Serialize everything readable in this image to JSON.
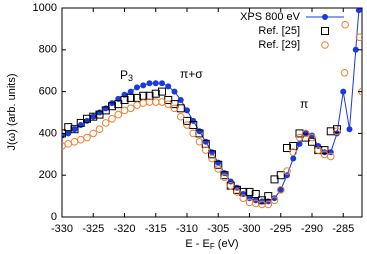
{
  "chart_data": {
    "type": "scatter",
    "x_label": [
      "E - E",
      "F",
      " (eV)"
    ],
    "y_label": "J(ω) (arb. units)",
    "annotations": [
      [
        "P",
        "3"
      ],
      [
        "π+σ"
      ],
      [
        "π"
      ]
    ],
    "xlim": [
      -330,
      -282
    ],
    "ylim": [
      0,
      1000
    ],
    "xticks": [
      -330,
      -325,
      -320,
      -315,
      -310,
      -305,
      -300,
      -295,
      -290,
      -285
    ],
    "yticks": [
      0,
      200,
      400,
      600,
      800,
      1000
    ],
    "legend": "top-right",
    "series": [
      {
        "name": "XPS 800 eV",
        "color": "#1a3ae0",
        "marker": "circle-filled",
        "line": true,
        "x": [
          -330,
          -329,
          -328,
          -327,
          -326,
          -325,
          -324,
          -323,
          -322,
          -321,
          -320,
          -319,
          -318,
          -317,
          -316,
          -315,
          -314,
          -313,
          -312,
          -311,
          -310,
          -309,
          -308,
          -307,
          -306,
          -305,
          -304,
          -303,
          -302,
          -301,
          -300,
          -299,
          -298,
          -297,
          -296,
          -295,
          -294,
          -293,
          -292,
          -291,
          -290,
          -289,
          -288,
          -287,
          -286,
          -285,
          -284,
          -283,
          -282.5
        ],
        "values": [
          390,
          400,
          420,
          440,
          460,
          480,
          500,
          520,
          545,
          565,
          585,
          600,
          620,
          630,
          640,
          640,
          640,
          625,
          600,
          560,
          510,
          460,
          410,
          360,
          310,
          260,
          210,
          170,
          140,
          110,
          90,
          80,
          75,
          75,
          90,
          130,
          200,
          280,
          350,
          400,
          390,
          340,
          310,
          310,
          400,
          600,
          420,
          800,
          990
        ]
      },
      {
        "name": "Ref. [25]",
        "color": "#000000",
        "marker": "square-open",
        "line": false,
        "x": [
          -330,
          -329,
          -328,
          -327,
          -326,
          -325,
          -324,
          -323,
          -322,
          -321,
          -320,
          -319,
          -318,
          -317,
          -316,
          -315,
          -314,
          -313,
          -312,
          -311,
          -310,
          -309,
          -308,
          -307,
          -306,
          -305,
          -304,
          -303,
          -302,
          -301,
          -300,
          -299,
          -298,
          -297,
          -296,
          -295,
          -294,
          -293,
          -292,
          -291,
          -290,
          -289,
          -288,
          -287,
          -286
        ],
        "values": [
          400,
          430,
          420,
          450,
          470,
          480,
          490,
          510,
          530,
          540,
          560,
          570,
          570,
          580,
          580,
          590,
          600,
          560,
          540,
          520,
          460,
          440,
          400,
          350,
          300,
          250,
          200,
          150,
          130,
          120,
          120,
          110,
          80,
          100,
          180,
          200,
          330,
          340,
          400,
          380,
          360,
          320,
          320,
          410,
          420
        ]
      },
      {
        "name": "Ref. [29]",
        "color": "#f07f30",
        "marker": "circle-open",
        "line": false,
        "x": [
          -330,
          -329,
          -328,
          -327,
          -326,
          -325,
          -324,
          -323,
          -322,
          -321,
          -320,
          -319,
          -318,
          -317,
          -316,
          -315,
          -314,
          -313,
          -312,
          -311,
          -310,
          -309,
          -308,
          -307,
          -306,
          -305,
          -304,
          -303,
          -302,
          -301,
          -300,
          -299,
          -298,
          -297,
          -296,
          -295,
          -294,
          -293,
          -292,
          -291,
          -290,
          -289,
          -288,
          -287,
          -286,
          -284.8,
          -284.7,
          -282.4,
          -282
        ],
        "values": [
          340,
          350,
          360,
          370,
          380,
          400,
          420,
          450,
          470,
          490,
          510,
          520,
          535,
          545,
          550,
          550,
          550,
          540,
          520,
          480,
          440,
          400,
          360,
          320,
          280,
          230,
          190,
          150,
          120,
          90,
          70,
          65,
          60,
          60,
          80,
          130,
          220,
          310,
          380,
          400,
          380,
          320,
          300,
          290,
          410,
          690,
          920,
          860,
          600
        ]
      }
    ]
  }
}
